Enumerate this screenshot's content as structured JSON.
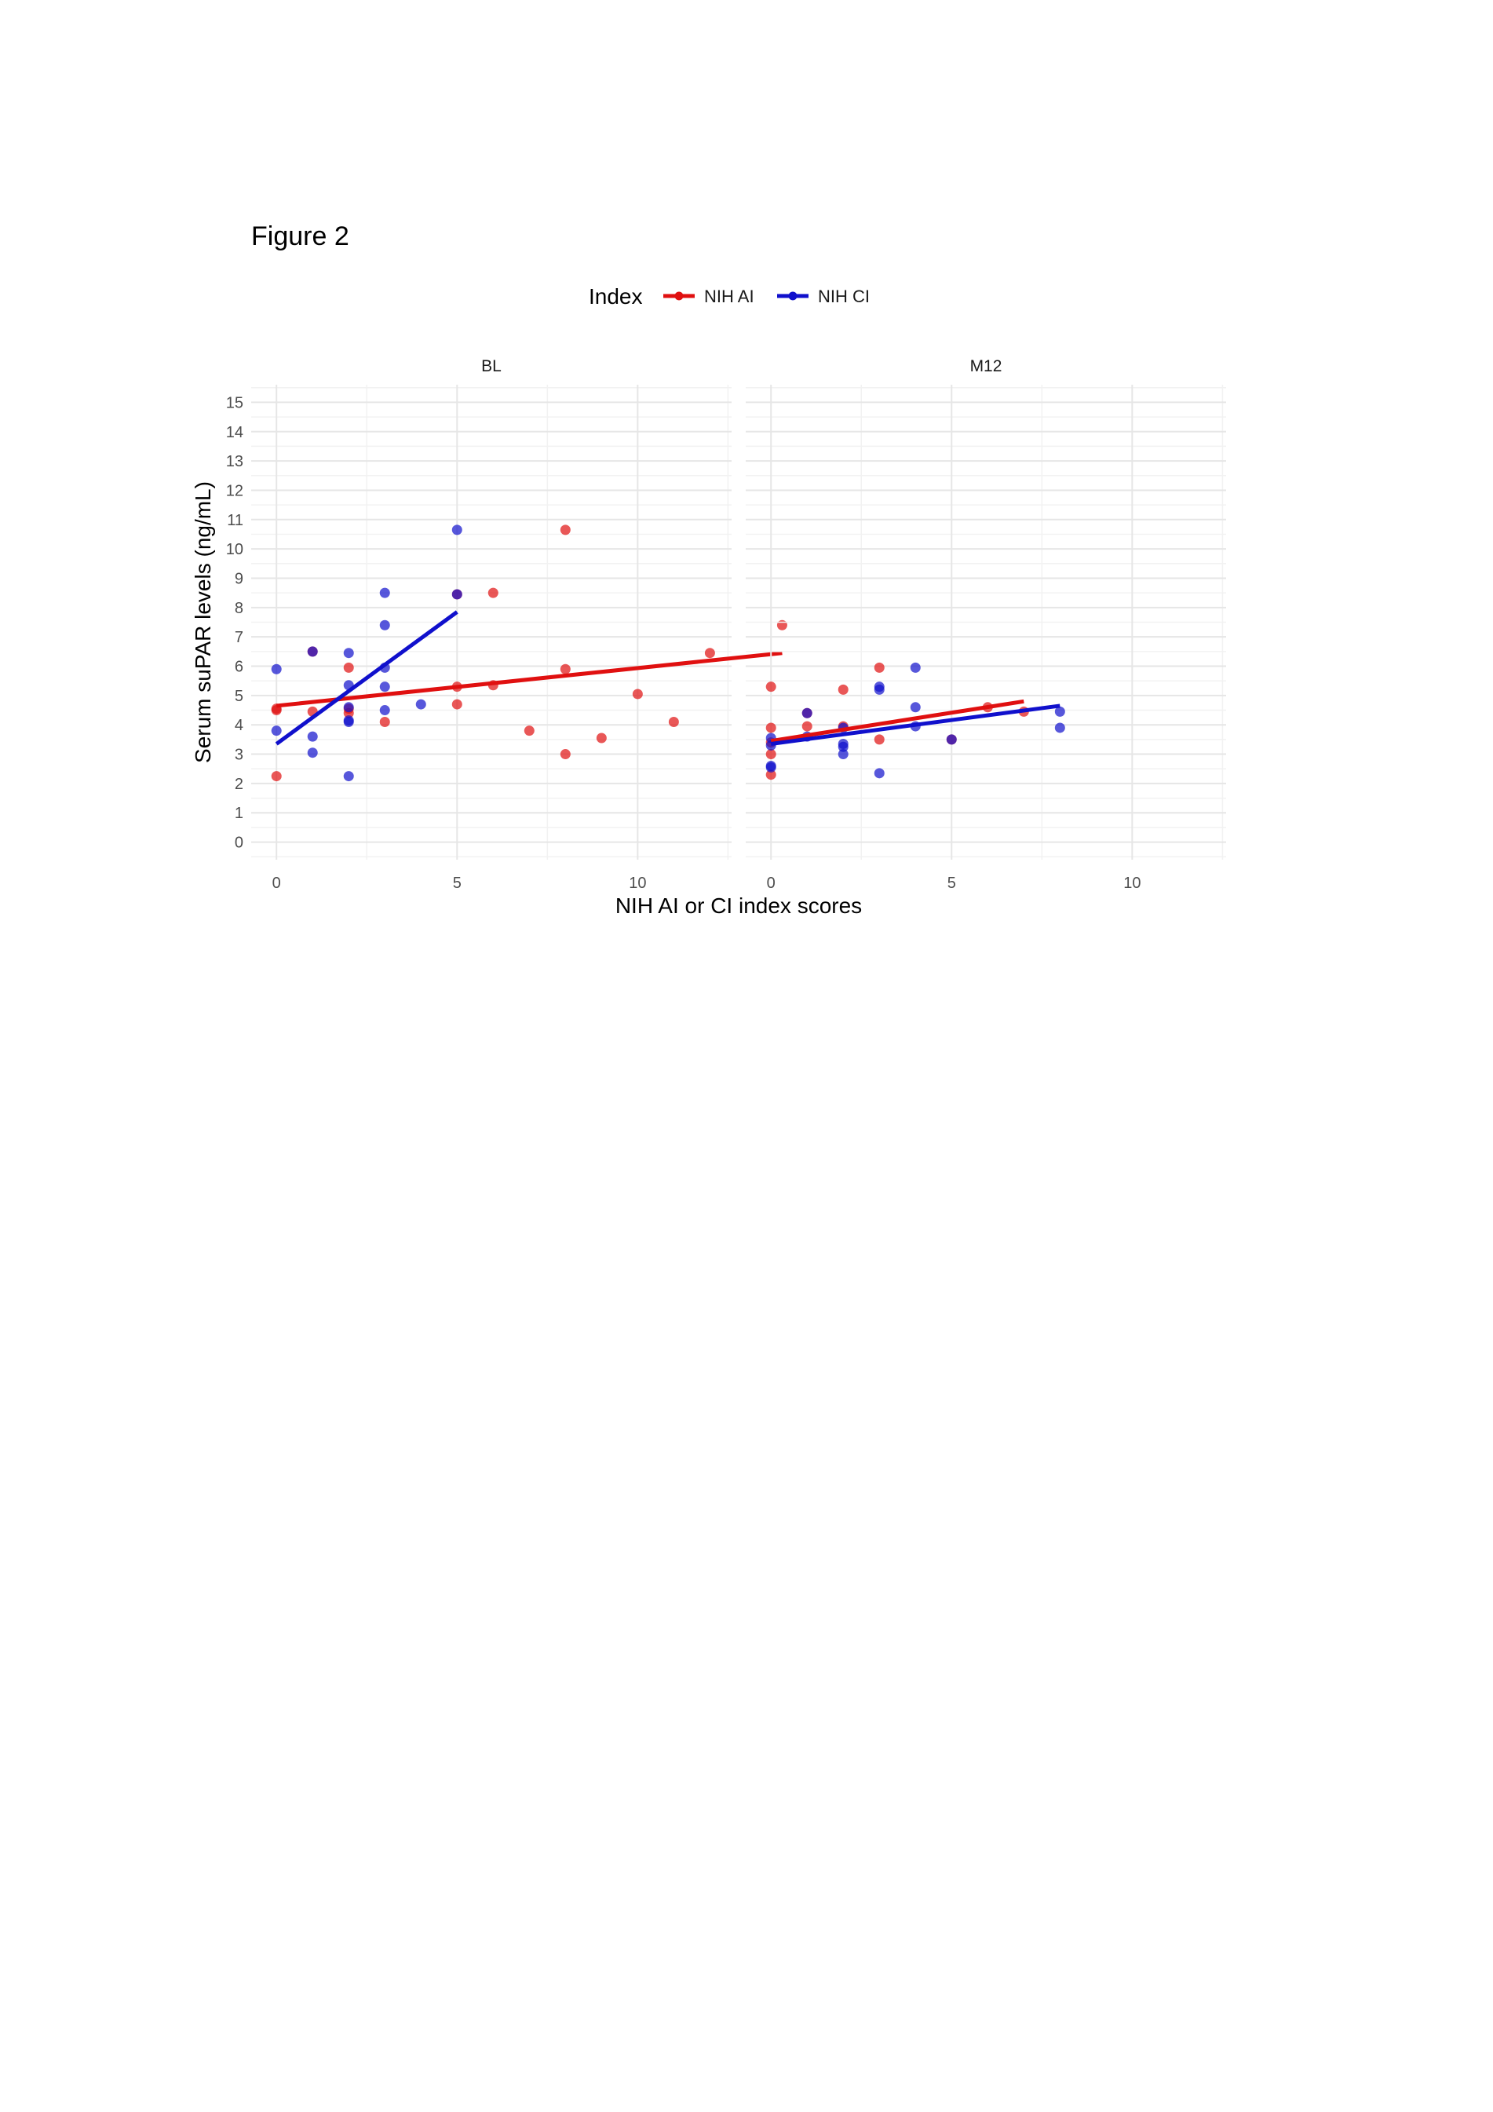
{
  "figure_label": "Figure 2",
  "chart_data": {
    "type": "scatter",
    "xlabel": "NIH AI or CI index scores",
    "ylabel": "Serum suPAR levels (ng/mL)",
    "xlim": [
      -0.7,
      12.6
    ],
    "ylim": [
      -0.6,
      15.6
    ],
    "x_ticks": [
      0,
      5,
      10
    ],
    "x_tick_labels": [
      "0",
      "5",
      "10"
    ],
    "y_ticks": [
      0,
      1,
      2,
      3,
      4,
      5,
      6,
      7,
      8,
      9,
      10,
      11,
      12,
      13,
      14,
      15
    ],
    "y_tick_labels": [
      "0",
      "1",
      "2",
      "3",
      "4",
      "5",
      "6",
      "7",
      "8",
      "9",
      "10",
      "11",
      "12",
      "13",
      "14",
      "15"
    ],
    "grid": true,
    "legend": {
      "title": "Index",
      "position": "top",
      "entries": [
        {
          "label": "NIH AI",
          "color": "#e01010"
        },
        {
          "label": "NIH CI",
          "color": "#1010cc"
        }
      ]
    },
    "facets": [
      {
        "label": "BL",
        "series": [
          {
            "name": "NIH AI",
            "color": "#e01010",
            "points": [
              {
                "x": 0,
                "y": 4.5
              },
              {
                "x": 0,
                "y": 4.55
              },
              {
                "x": 0,
                "y": 2.25
              },
              {
                "x": 1,
                "y": 4.45
              },
              {
                "x": 1,
                "y": 6.5
              },
              {
                "x": 2,
                "y": 5.95
              },
              {
                "x": 2,
                "y": 4.55
              },
              {
                "x": 2,
                "y": 4.4
              },
              {
                "x": 3,
                "y": 4.1
              },
              {
                "x": 5,
                "y": 5.3
              },
              {
                "x": 5,
                "y": 4.7
              },
              {
                "x": 5,
                "y": 8.45
              },
              {
                "x": 6,
                "y": 8.5
              },
              {
                "x": 6,
                "y": 5.35
              },
              {
                "x": 7,
                "y": 3.8
              },
              {
                "x": 8,
                "y": 10.65
              },
              {
                "x": 8,
                "y": 5.9
              },
              {
                "x": 8,
                "y": 3.0
              },
              {
                "x": 9,
                "y": 3.55
              },
              {
                "x": 10,
                "y": 5.05
              },
              {
                "x": 11,
                "y": 4.1
              },
              {
                "x": 12,
                "y": 6.45
              },
              {
                "x": 14,
                "y": 7.4
              }
            ],
            "fit": {
              "x": [
                0,
                14
              ],
              "y": [
                4.65,
                6.45
              ]
            }
          },
          {
            "name": "NIH CI",
            "color": "#1010cc",
            "points": [
              {
                "x": 0,
                "y": 5.9
              },
              {
                "x": 0,
                "y": 3.8
              },
              {
                "x": 1,
                "y": 6.5
              },
              {
                "x": 1,
                "y": 3.6
              },
              {
                "x": 1,
                "y": 3.05
              },
              {
                "x": 2,
                "y": 6.45
              },
              {
                "x": 2,
                "y": 5.35
              },
              {
                "x": 2,
                "y": 4.6
              },
              {
                "x": 2,
                "y": 4.15
              },
              {
                "x": 2,
                "y": 4.1
              },
              {
                "x": 2,
                "y": 2.25
              },
              {
                "x": 3,
                "y": 8.5
              },
              {
                "x": 3,
                "y": 7.4
              },
              {
                "x": 3,
                "y": 5.95
              },
              {
                "x": 3,
                "y": 5.3
              },
              {
                "x": 3,
                "y": 4.5
              },
              {
                "x": 4,
                "y": 4.7
              },
              {
                "x": 5,
                "y": 10.65
              },
              {
                "x": 5,
                "y": 8.45
              }
            ],
            "fit": {
              "x": [
                0,
                5
              ],
              "y": [
                3.35,
                7.85
              ]
            }
          }
        ]
      },
      {
        "label": "M12",
        "series": [
          {
            "name": "NIH AI",
            "color": "#e01010",
            "points": [
              {
                "x": 0,
                "y": 5.3
              },
              {
                "x": 0,
                "y": 3.9
              },
              {
                "x": 0,
                "y": 3.4
              },
              {
                "x": 0,
                "y": 3.0
              },
              {
                "x": 0,
                "y": 2.3
              },
              {
                "x": 1,
                "y": 4.4
              },
              {
                "x": 1,
                "y": 3.95
              },
              {
                "x": 2,
                "y": 5.2
              },
              {
                "x": 2,
                "y": 3.95
              },
              {
                "x": 3,
                "y": 5.95
              },
              {
                "x": 3,
                "y": 3.5
              },
              {
                "x": 5,
                "y": 3.5
              },
              {
                "x": 6,
                "y": 4.6
              },
              {
                "x": 7,
                "y": 4.45
              }
            ],
            "fit": {
              "x": [
                0,
                7
              ],
              "y": [
                3.45,
                4.8
              ]
            }
          },
          {
            "name": "NIH CI",
            "color": "#1010cc",
            "points": [
              {
                "x": 0,
                "y": 3.55
              },
              {
                "x": 0,
                "y": 3.3
              },
              {
                "x": 0,
                "y": 2.6
              },
              {
                "x": 0,
                "y": 2.55
              },
              {
                "x": 1,
                "y": 4.4
              },
              {
                "x": 1,
                "y": 3.6
              },
              {
                "x": 2,
                "y": 3.9
              },
              {
                "x": 2,
                "y": 3.35
              },
              {
                "x": 2,
                "y": 3.25
              },
              {
                "x": 2,
                "y": 3.0
              },
              {
                "x": 3,
                "y": 5.3
              },
              {
                "x": 3,
                "y": 5.2
              },
              {
                "x": 3,
                "y": 2.35
              },
              {
                "x": 4,
                "y": 5.95
              },
              {
                "x": 4,
                "y": 4.6
              },
              {
                "x": 4,
                "y": 3.95
              },
              {
                "x": 5,
                "y": 3.5
              },
              {
                "x": 8,
                "y": 4.45
              },
              {
                "x": 8,
                "y": 3.9
              }
            ],
            "fit": {
              "x": [
                0,
                8
              ],
              "y": [
                3.35,
                4.65
              ]
            }
          }
        ]
      }
    ]
  }
}
